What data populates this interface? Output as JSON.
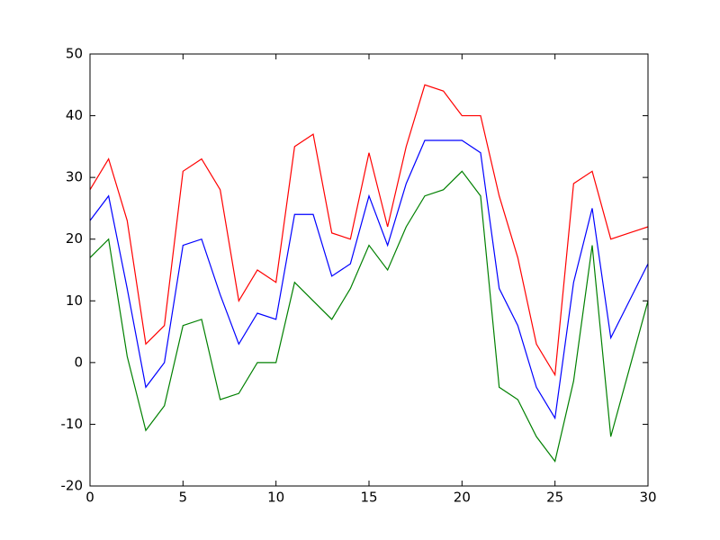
{
  "chart_data": {
    "type": "line",
    "x": [
      0,
      1,
      2,
      3,
      4,
      5,
      6,
      7,
      8,
      9,
      10,
      11,
      12,
      13,
      14,
      15,
      16,
      17,
      18,
      19,
      20,
      21,
      22,
      23,
      24,
      25,
      26,
      27,
      28,
      29,
      30
    ],
    "series": [
      {
        "color": "#ff0000",
        "values": [
          28,
          33,
          23,
          3,
          6,
          31,
          33,
          28,
          10,
          15,
          13,
          35,
          37,
          21,
          20,
          34,
          22,
          35,
          45,
          44,
          40,
          40,
          27,
          17,
          3,
          -2,
          29,
          31,
          20,
          21,
          22
        ]
      },
      {
        "color": "#0000ff",
        "values": [
          23,
          27,
          12,
          -4,
          0,
          19,
          20,
          11,
          3,
          8,
          7,
          24,
          24,
          14,
          16,
          27,
          19,
          29,
          36,
          36,
          36,
          34,
          12,
          6,
          -4,
          -9,
          13,
          25,
          4,
          10,
          16
        ]
      },
      {
        "color": "#008000",
        "values": [
          17,
          20,
          1,
          -11,
          -7,
          6,
          7,
          -6,
          -5,
          0,
          0,
          13,
          10,
          7,
          12,
          19,
          15,
          22,
          27,
          28,
          31,
          27,
          -4,
          -6,
          -12,
          -16,
          -3,
          19,
          -12,
          -1,
          10
        ]
      }
    ],
    "xlim": [
      0,
      30
    ],
    "xticks": [
      0,
      5,
      10,
      15,
      20,
      25,
      30
    ],
    "ylim": [
      -20,
      50
    ],
    "yticks": [
      -20,
      -10,
      0,
      10,
      20,
      30,
      40,
      50
    ],
    "grid": false
  }
}
